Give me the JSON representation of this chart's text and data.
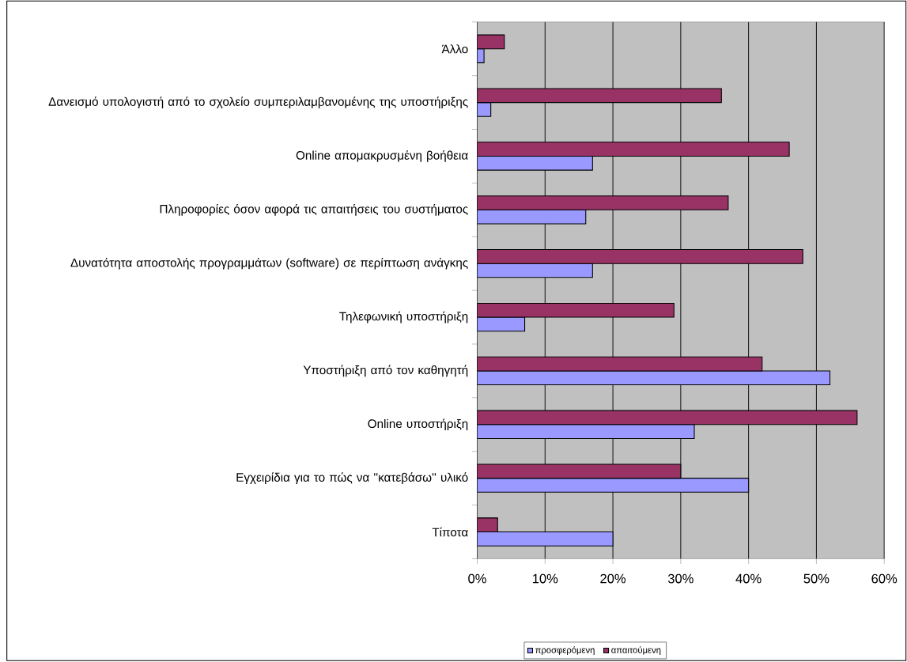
{
  "chart_data": {
    "type": "bar",
    "orientation": "horizontal",
    "categories": [
      "Άλλο",
      "Δανεισμό υπολογιστή από το σχολείο συμπεριλαμβανομένης της υποστήριξης",
      "Online απομακρυσμένη βοήθεια",
      "Πληροφορίες όσον αφορά τις απαιτήσεις του συστήματος",
      "Δυνατότητα αποστολής προγραμμάτων (software) σε περίπτωση ανάγκης",
      "Τηλεφωνική υποστήριξη",
      "Υποστήριξη από τον καθηγητή",
      "Online υποστήριξη",
      "Εγχειρίδια για το πώς να ''κατεβάσω'' υλικό",
      "Τίποτα"
    ],
    "series": [
      {
        "name": "προσφερόμενη",
        "color": "#9999ff",
        "values": [
          1,
          2,
          17,
          16,
          17,
          7,
          52,
          32,
          40,
          20
        ]
      },
      {
        "name": "απαιτούμενη",
        "color": "#993366",
        "values": [
          4,
          36,
          46,
          37,
          48,
          29,
          42,
          56,
          30,
          3
        ]
      }
    ],
    "xlim": [
      0,
      60
    ],
    "xticks": [
      {
        "value": 0,
        "label": "0%"
      },
      {
        "value": 10,
        "label": "10%"
      },
      {
        "value": 20,
        "label": "20%"
      },
      {
        "value": 30,
        "label": "30%"
      },
      {
        "value": 40,
        "label": "40%"
      },
      {
        "value": 50,
        "label": "50%"
      },
      {
        "value": 60,
        "label": "60%"
      }
    ],
    "grid": "x",
    "legend": "bottom"
  }
}
